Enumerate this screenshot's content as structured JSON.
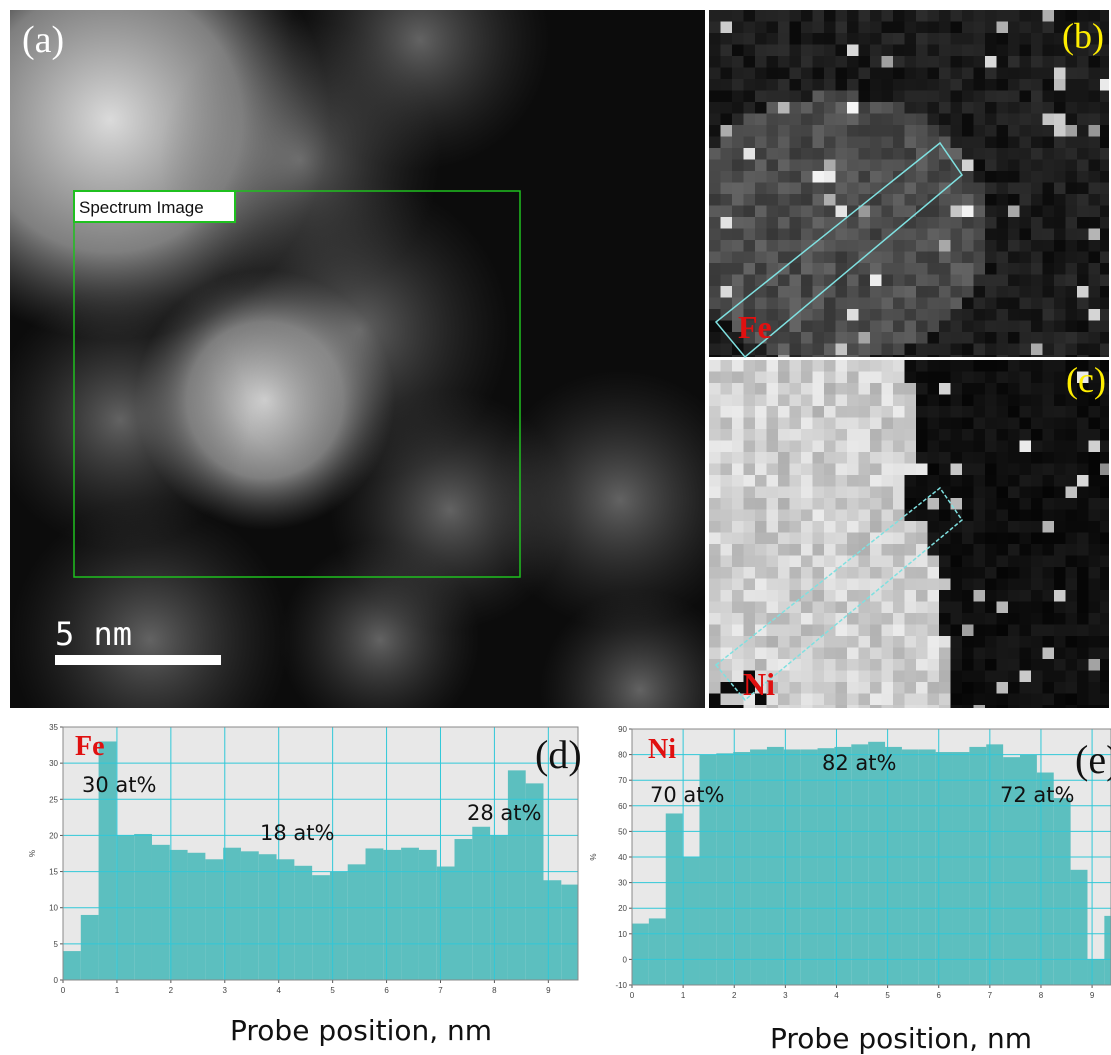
{
  "panels": {
    "a": {
      "label": "(a)",
      "box_label": "Spectrum Image",
      "scale_bar": "5 nm"
    },
    "b": {
      "label": "(b)",
      "element": "Fe"
    },
    "c": {
      "label": "(c)",
      "element": "Ni"
    }
  },
  "chart_data": [
    {
      "type": "histogram",
      "panel_label": "(d)",
      "element": "Fe",
      "annotations": [
        "30 at%",
        "18 at%",
        "28 at%"
      ],
      "y_label": "%",
      "x_label": "Probe position, nm",
      "bins": [
        0,
        0.33,
        0.66,
        0.99,
        1.32,
        1.65,
        1.98,
        2.31,
        2.64,
        2.97,
        3.3,
        3.63,
        3.96,
        4.29,
        4.62,
        4.95,
        5.28,
        5.61,
        5.94,
        6.27,
        6.6,
        6.93,
        7.26,
        7.59,
        7.92,
        8.25,
        8.58,
        8.91,
        9.24,
        9.57
      ],
      "values": [
        4,
        9,
        33,
        20,
        20.2,
        18.7,
        18,
        17.6,
        16.7,
        18.3,
        17.8,
        17.4,
        16.7,
        15.8,
        14.5,
        15,
        16,
        18.2,
        18,
        18.3,
        18,
        15.7,
        19.5,
        21.2,
        20,
        29,
        27.2,
        13.8,
        13.2
      ],
      "color": "#5cbfbf",
      "grid": true,
      "xlim": [
        0,
        9.55
      ],
      "ylim": [
        0,
        35
      ],
      "xticks": [
        0,
        1,
        2,
        3,
        4,
        5,
        6,
        7,
        8,
        9
      ],
      "yticks": [
        0,
        5,
        10,
        15,
        20,
        25,
        30,
        35
      ]
    },
    {
      "type": "histogram",
      "panel_label": "(e)",
      "element": "Ni",
      "annotations": [
        "82 at%",
        "70 at%",
        "72 at%"
      ],
      "y_label": "%",
      "x_label": "Probe position, nm",
      "bins": [
        0,
        0.33,
        0.66,
        0.99,
        1.32,
        1.65,
        1.98,
        2.31,
        2.64,
        2.97,
        3.3,
        3.63,
        3.96,
        4.29,
        4.62,
        4.95,
        5.28,
        5.61,
        5.94,
        6.27,
        6.6,
        6.93,
        7.26,
        7.59,
        7.92,
        8.25,
        8.58,
        8.91,
        9.24,
        9.57
      ],
      "values": [
        14,
        16,
        57,
        40,
        80,
        80.5,
        81,
        82,
        83,
        82,
        82,
        82.5,
        83,
        84,
        85,
        83,
        82,
        82,
        81,
        81,
        83,
        84,
        79,
        80,
        73,
        63,
        35,
        0,
        17
      ],
      "color": "#5cbfbf",
      "grid": true,
      "xlim": [
        0,
        9.37
      ],
      "ylim": [
        -10,
        90
      ],
      "xticks": [
        0,
        1,
        2,
        3,
        4,
        5,
        6,
        7,
        8,
        9
      ],
      "yticks": [
        -10,
        0,
        10,
        20,
        30,
        40,
        50,
        60,
        70,
        80,
        90
      ]
    }
  ]
}
